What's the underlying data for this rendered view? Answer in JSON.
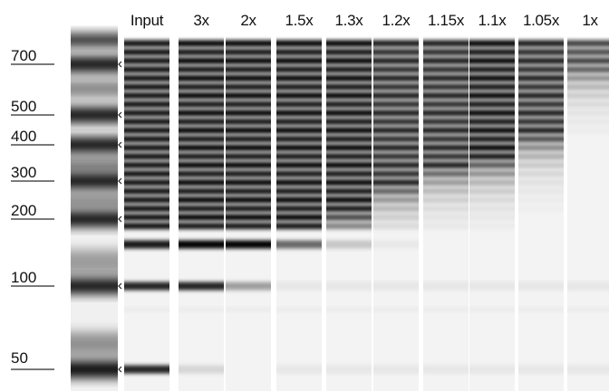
{
  "lanes": [
    {
      "label": "Input",
      "dilution": null
    },
    {
      "label": "3x",
      "dilution": 3
    },
    {
      "label": "2x",
      "dilution": 2
    },
    {
      "label": "1.5x",
      "dilution": 1.5
    },
    {
      "label": "1.3x",
      "dilution": 1.3
    },
    {
      "label": "1.2x",
      "dilution": 1.2
    },
    {
      "label": "1.15x",
      "dilution": 1.15
    },
    {
      "label": "1.1x",
      "dilution": 1.1
    },
    {
      "label": "1.05x",
      "dilution": 1.05
    },
    {
      "label": "1x",
      "dilution": 1
    }
  ],
  "size_markers": [
    {
      "label": "700",
      "bp": 700
    },
    {
      "label": "500",
      "bp": 500
    },
    {
      "label": "400",
      "bp": 400
    },
    {
      "label": "300",
      "bp": 300
    },
    {
      "label": "200",
      "bp": 200
    },
    {
      "label": "100",
      "bp": 100
    },
    {
      "label": "50",
      "bp": 50
    }
  ],
  "colors": {
    "background": "#ffffff",
    "band": "#000000",
    "lane_bg": "#f3f3f3",
    "marker_rule": "#7a7a7a",
    "text": "#111111"
  }
}
